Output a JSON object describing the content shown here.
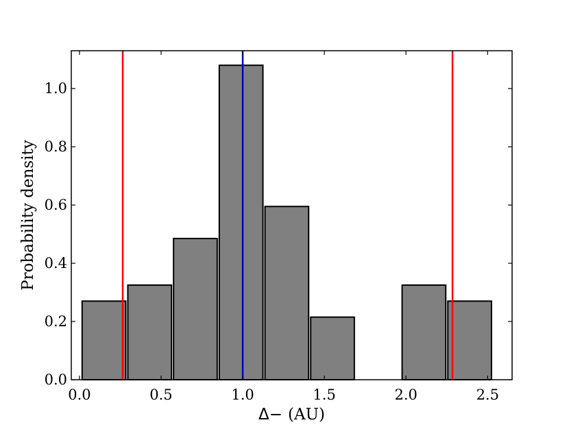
{
  "chart_data": {
    "type": "bar",
    "xlabel_symbol": "Δ−",
    "xlabel_unit": "(AU)",
    "ylabel": "Probability density",
    "xlim": [
      -0.05,
      2.65
    ],
    "ylim": [
      0.0,
      1.13
    ],
    "xticks": [
      0.0,
      0.5,
      1.0,
      1.5,
      2.0,
      2.5
    ],
    "xtick_labels": [
      "0.0",
      "0.5",
      "1.0",
      "1.5",
      "2.0",
      "2.5"
    ],
    "yticks": [
      0.0,
      0.2,
      0.4,
      0.6,
      0.8,
      1.0
    ],
    "ytick_labels": [
      "0.0",
      "0.2",
      "0.4",
      "0.6",
      "0.8",
      "1.0"
    ],
    "bin_width": 0.28,
    "bars": [
      {
        "center": 0.15,
        "value": 0.27
      },
      {
        "center": 0.43,
        "value": 0.325
      },
      {
        "center": 0.71,
        "value": 0.485
      },
      {
        "center": 0.99,
        "value": 1.08
      },
      {
        "center": 1.27,
        "value": 0.595
      },
      {
        "center": 1.55,
        "value": 0.215
      },
      {
        "center": 1.83,
        "value": 0.0
      },
      {
        "center": 2.11,
        "value": 0.325
      },
      {
        "center": 2.39,
        "value": 0.27
      }
    ],
    "bar_color": "#808080",
    "bar_edge_color": "#000000",
    "vlines": [
      {
        "x": 0.265,
        "color": "#ff0000"
      },
      {
        "x": 1.0,
        "color": "#0000cc"
      },
      {
        "x": 2.285,
        "color": "#ff0000"
      }
    ],
    "grid": false
  }
}
